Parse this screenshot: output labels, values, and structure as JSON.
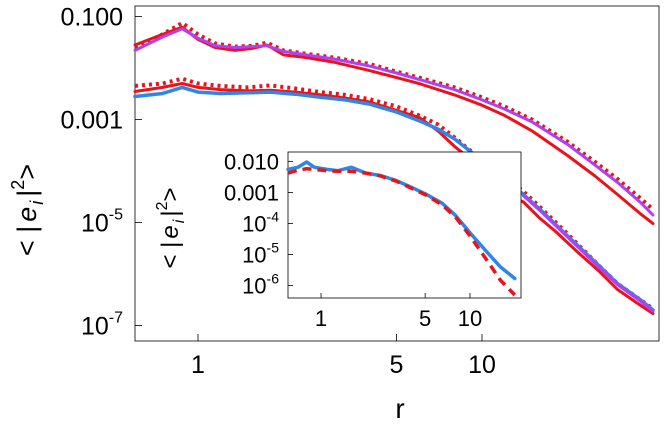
{
  "chart_data": [
    {
      "id": "main",
      "type": "line",
      "xscale": "log",
      "yscale": "log",
      "xlim": [
        0.6,
        42
      ],
      "ylim": [
        5e-08,
        0.16
      ],
      "xlabel": "r",
      "ylabel": "< | e_i | ^2 >",
      "ylabel_parts": {
        "open": "< |",
        "e": "e",
        "sub": "i",
        "close": "|",
        "sup": "2",
        "end": ">"
      },
      "xticks": [
        {
          "value": 1,
          "label": "1"
        },
        {
          "value": 5,
          "label": "5"
        },
        {
          "value": 10,
          "label": "10"
        }
      ],
      "yticks": [
        {
          "value": 0.1,
          "label": "0.100"
        },
        {
          "value": 0.001,
          "label": "0.001"
        },
        {
          "value": 1e-05,
          "label": "10",
          "exp": "-5"
        },
        {
          "value": 1e-07,
          "label": "10",
          "exp": "-7"
        }
      ],
      "series": [
        {
          "name": "upper solid red",
          "color": "#e8141b",
          "dash": "none",
          "width": 3,
          "x": [
            0.6,
            0.75,
            0.88,
            1.0,
            1.15,
            1.35,
            1.55,
            1.75,
            2.0,
            2.4,
            3.0,
            4.0,
            5.0,
            6.0,
            8.0,
            10.0,
            12.0,
            15.0,
            20.0,
            25.0,
            30.0,
            36.0,
            40.0
          ],
          "y": [
            0.028,
            0.045,
            0.062,
            0.036,
            0.025,
            0.022,
            0.024,
            0.028,
            0.018,
            0.016,
            0.013,
            0.009,
            0.0065,
            0.005,
            0.003,
            0.0019,
            0.0012,
            0.0006,
            0.0002,
            8e-05,
            3.5e-05,
            1.5e-05,
            9.5e-06
          ]
        },
        {
          "name": "upper dotted red",
          "color": "#e8141b",
          "dash": "3,4",
          "width": 4,
          "x": [
            0.6,
            0.75,
            0.88,
            1.0,
            1.15,
            1.35,
            1.55,
            1.75,
            2.0,
            2.4,
            3.0,
            4.0,
            5.0,
            6.0,
            8.0,
            10.0,
            12.0,
            15.0,
            20.0,
            25.0,
            30.0,
            36.0,
            40.0
          ],
          "y": [
            0.025,
            0.045,
            0.075,
            0.045,
            0.03,
            0.026,
            0.027,
            0.031,
            0.022,
            0.019,
            0.016,
            0.012,
            0.0085,
            0.0065,
            0.0042,
            0.0027,
            0.0018,
            0.001,
            0.00037,
            0.00015,
            7e-05,
            3e-05,
            1.8e-05
          ]
        },
        {
          "name": "upper magenta",
          "color": "#b040f0",
          "dash": "none",
          "width": 3,
          "x": [
            0.6,
            0.75,
            0.88,
            1.0,
            1.15,
            1.35,
            1.55,
            1.75,
            2.0,
            2.4,
            3.0,
            4.0,
            5.0,
            6.0,
            8.0,
            10.0,
            12.0,
            15.0,
            20.0,
            25.0,
            30.0,
            36.0,
            40.0
          ],
          "y": [
            0.022,
            0.04,
            0.058,
            0.038,
            0.027,
            0.025,
            0.026,
            0.027,
            0.021,
            0.018,
            0.015,
            0.011,
            0.008,
            0.006,
            0.0038,
            0.0024,
            0.0016,
            0.0009,
            0.00033,
            0.00013,
            6e-05,
            2.5e-05,
            1.4e-05
          ]
        },
        {
          "name": "lower solid red",
          "color": "#e8141b",
          "dash": "none",
          "width": 3,
          "x": [
            0.6,
            0.75,
            0.88,
            1.0,
            1.2,
            1.5,
            1.8,
            2.2,
            2.7,
            3.3,
            4.0,
            5.0,
            6.0,
            7.0,
            8.0,
            9.0,
            10.0,
            11.0,
            12.0,
            13.0,
            14.0,
            16.0,
            18.0,
            22.0,
            26.0,
            30.0,
            36.0,
            40.0
          ],
          "y": [
            0.0035,
            0.0042,
            0.005,
            0.0042,
            0.0038,
            0.0036,
            0.0037,
            0.0034,
            0.003,
            0.0026,
            0.0022,
            0.0015,
            0.0011,
            0.0006,
            0.0003,
            0.00018,
            0.00012,
            0.0001,
            6e-05,
            3e-05,
            2.5e-05,
            1.2e-05,
            7e-06,
            2.5e-06,
            1.1e-06,
            5e-07,
            2.5e-07,
            1.7e-07
          ]
        },
        {
          "name": "lower dotted red",
          "color": "#e8141b",
          "dash": "3,4",
          "width": 4,
          "x": [
            0.6,
            0.75,
            0.88,
            1.0,
            1.2,
            1.5,
            1.8,
            2.2,
            2.7,
            3.3,
            4.0,
            5.0,
            6.0,
            7.0,
            8.0,
            9.0,
            10.0,
            12.0,
            14.0,
            16.0,
            20.0,
            26.0,
            30.0,
            36.0,
            40.0
          ],
          "y": [
            0.0045,
            0.005,
            0.0062,
            0.005,
            0.0045,
            0.0042,
            0.0046,
            0.004,
            0.0034,
            0.003,
            0.0025,
            0.0018,
            0.0012,
            0.0008,
            0.00045,
            0.00026,
            0.00017,
            8e-05,
            4e-05,
            2e-05,
            6e-06,
            1.4e-06,
            6.5e-07,
            3.2e-07,
            2.1e-07
          ]
        },
        {
          "name": "lower blue",
          "color": "#2f86e6",
          "dash": "none",
          "width": 3.5,
          "x": [
            0.6,
            0.75,
            0.88,
            1.0,
            1.2,
            1.5,
            1.8,
            2.2,
            2.7,
            3.3,
            4.0,
            5.0,
            6.0,
            7.0,
            8.0,
            10.0,
            12.0,
            14.0,
            16.0,
            20.0,
            26.0,
            30.0,
            36.0,
            40.0
          ],
          "y": [
            0.0028,
            0.0032,
            0.0042,
            0.0034,
            0.0032,
            0.0033,
            0.0034,
            0.0031,
            0.0027,
            0.0024,
            0.002,
            0.0014,
            0.00095,
            0.00065,
            0.00042,
            0.00016,
            7e-05,
            3.5e-05,
            1.8e-05,
            5.5e-06,
            1.4e-06,
            6.5e-07,
            3.2e-07,
            2e-07
          ]
        },
        {
          "name": "lower magenta",
          "color": "#b040f0",
          "dash": "none",
          "width": 3,
          "x": [
            14.0,
            16.0,
            20.0,
            26.0,
            30.0,
            36.0,
            40.0
          ],
          "y": [
            3.3e-05,
            1.7e-05,
            5.2e-06,
            1.3e-06,
            6.2e-07,
            3e-07,
            1.9e-07
          ]
        }
      ]
    },
    {
      "id": "inset",
      "type": "line",
      "xscale": "log",
      "yscale": "log",
      "xlim": [
        0.6,
        22
      ],
      "ylim": [
        4e-07,
        0.02
      ],
      "xlabel": "",
      "ylabel": "< | e_i | ^2 >",
      "ylabel_parts": {
        "open": "< |",
        "e": "e",
        "sub": "i",
        "close": "|",
        "sup": "2",
        "end": ">"
      },
      "xticks": [
        {
          "value": 1,
          "label": "1"
        },
        {
          "value": 5,
          "label": "5"
        },
        {
          "value": 10,
          "label": "10"
        }
      ],
      "yticks": [
        {
          "value": 0.01,
          "label": "0.010"
        },
        {
          "value": 0.001,
          "label": "0.001"
        },
        {
          "value": 0.0001,
          "label": "10",
          "exp": "-4"
        },
        {
          "value": 1e-05,
          "label": "10",
          "exp": "-5"
        },
        {
          "value": 1e-06,
          "label": "10",
          "exp": "-6"
        }
      ],
      "series": [
        {
          "name": "inset blue",
          "color": "#2f86e6",
          "dash": "none",
          "width": 3.5,
          "x": [
            0.6,
            0.7,
            0.8,
            0.9,
            1.1,
            1.3,
            1.6,
            2.0,
            2.5,
            3.2,
            4.0,
            5.0,
            6.5,
            8.0,
            10.0,
            13.0,
            16.0,
            20.0
          ],
          "y": [
            0.0055,
            0.0065,
            0.0095,
            0.0065,
            0.0055,
            0.005,
            0.0065,
            0.0042,
            0.0035,
            0.0024,
            0.0015,
            0.0009,
            0.00045,
            0.00018,
            5e-05,
            1.2e-05,
            4e-06,
            1.7e-06
          ]
        },
        {
          "name": "inset red dashed",
          "color": "#e8141b",
          "dash": "9,6",
          "width": 3.5,
          "x": [
            0.6,
            0.7,
            0.8,
            0.9,
            1.1,
            1.3,
            1.6,
            2.0,
            2.5,
            3.2,
            4.0,
            5.0,
            6.5,
            8.0,
            10.0,
            13.0,
            16.0,
            20.0
          ],
          "y": [
            0.0042,
            0.0052,
            0.0058,
            0.0055,
            0.005,
            0.0048,
            0.0048,
            0.0042,
            0.0034,
            0.0023,
            0.0014,
            0.00085,
            0.0004,
            0.00016,
            4e-05,
            6.5e-06,
            1.5e-06,
            5e-07
          ]
        }
      ]
    }
  ]
}
